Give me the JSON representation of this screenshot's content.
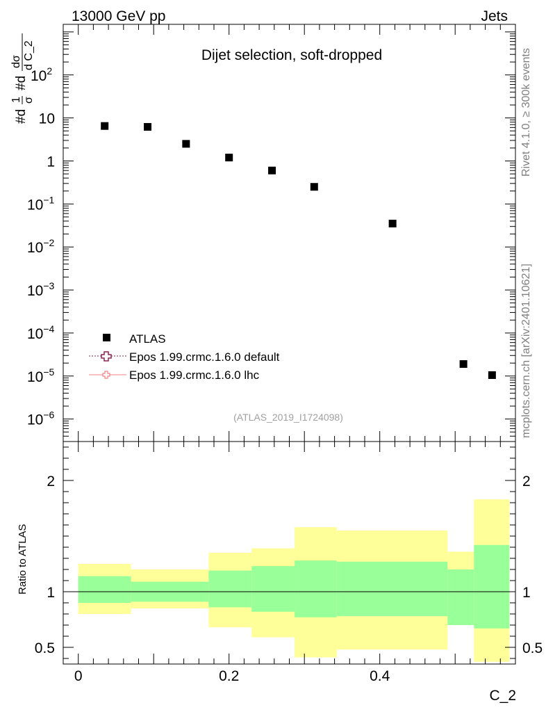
{
  "header": {
    "energy_label": "13000 GeV pp",
    "category_label": "Jets"
  },
  "side_labels": {
    "rivet": "Rivet 4.1.0, ≥ 300k events",
    "mcplots": "mcplots.cern.ch [arXiv:2401.10621]"
  },
  "chart_data": [
    {
      "type": "scatter",
      "title": "Dijet selection, soft-dropped",
      "analysis_id": "(ATLAS_2019_I1724098)",
      "xlabel": "C_2",
      "ylabel_parts": [
        "#d",
        "1",
        "σ",
        "#d",
        "dσ",
        "d C_2"
      ],
      "yscale": "log",
      "ylim": [
        3e-07,
        1500
      ],
      "xlim": [
        -0.02,
        0.58
      ],
      "y_ticks": [
        {
          "value": 100,
          "mant": "10",
          "exp": "2"
        },
        {
          "value": 10,
          "mant": "10",
          "exp": ""
        },
        {
          "value": 1,
          "mant": "1",
          "exp": ""
        },
        {
          "value": 0.1,
          "mant": "10",
          "exp": "−1"
        },
        {
          "value": 0.01,
          "mant": "10",
          "exp": "−2"
        },
        {
          "value": 0.001,
          "mant": "10",
          "exp": "−3"
        },
        {
          "value": 0.0001,
          "mant": "10",
          "exp": "−4"
        },
        {
          "value": 1e-05,
          "mant": "10",
          "exp": "−5"
        },
        {
          "value": 1e-06,
          "mant": "10",
          "exp": "−6"
        }
      ],
      "legend": [
        {
          "label": "ATLAS",
          "marker": "square",
          "color": "#000000"
        },
        {
          "label": "Epos 1.99.crmc.1.6.0 default",
          "marker": "open-cross",
          "color": "#8b2252"
        },
        {
          "label": "Epos 1.99.crmc.1.6.0 lhc",
          "marker": "open-cross",
          "color": "#f08080"
        }
      ],
      "series": [
        {
          "name": "ATLAS",
          "x": [
            0.035,
            0.092,
            0.143,
            0.2,
            0.257,
            0.313,
            0.417,
            0.511,
            0.549
          ],
          "y": [
            6.5,
            6.2,
            2.5,
            1.2,
            0.6,
            0.25,
            0.035,
            1.9e-05,
            1.05e-05
          ]
        }
      ]
    },
    {
      "type": "area",
      "ylabel": "Ratio to ATLAS",
      "xlabel": "C_2",
      "ylim": [
        0.35,
        2.35
      ],
      "xlim": [
        -0.02,
        0.58
      ],
      "x_ticks": [
        {
          "value": 0,
          "label": "0"
        },
        {
          "value": 0.2,
          "label": "0.2"
        },
        {
          "value": 0.4,
          "label": "0.4"
        }
      ],
      "y_ticks": [
        {
          "value": 0.5,
          "label": "0.5"
        },
        {
          "value": 1,
          "label": "1"
        },
        {
          "value": 2,
          "label": "2"
        }
      ],
      "reference_line": 1,
      "bands": [
        {
          "x0": 0.0,
          "x1": 0.07,
          "stat_lo": 0.9,
          "stat_hi": 1.14,
          "tot_lo": 0.8,
          "tot_hi": 1.25
        },
        {
          "x0": 0.07,
          "x1": 0.173,
          "stat_lo": 0.91,
          "stat_hi": 1.09,
          "tot_lo": 0.85,
          "tot_hi": 1.2
        },
        {
          "x0": 0.173,
          "x1": 0.23,
          "stat_lo": 0.86,
          "stat_hi": 1.19,
          "tot_lo": 0.68,
          "tot_hi": 1.35
        },
        {
          "x0": 0.23,
          "x1": 0.287,
          "stat_lo": 0.82,
          "stat_hi": 1.23,
          "tot_lo": 0.59,
          "tot_hi": 1.39
        },
        {
          "x0": 0.287,
          "x1": 0.343,
          "stat_lo": 0.77,
          "stat_hi": 1.28,
          "tot_lo": 0.41,
          "tot_hi": 1.58
        },
        {
          "x0": 0.343,
          "x1": 0.49,
          "stat_lo": 0.78,
          "stat_hi": 1.27,
          "tot_lo": 0.48,
          "tot_hi": 1.55
        },
        {
          "x0": 0.49,
          "x1": 0.525,
          "stat_lo": 0.7,
          "stat_hi": 1.2,
          "tot_lo": 0.7,
          "tot_hi": 1.36
        },
        {
          "x0": 0.525,
          "x1": 0.572,
          "stat_lo": 0.67,
          "stat_hi": 1.42,
          "tot_lo": 0.37,
          "tot_hi": 1.83
        }
      ],
      "colors": {
        "stat": "#99ff99",
        "total": "#ffff99"
      }
    }
  ]
}
